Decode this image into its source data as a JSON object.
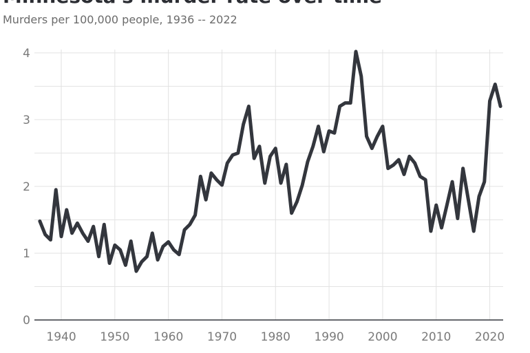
{
  "chart_data": {
    "type": "line",
    "title": "Minnesota's murder rate over time",
    "subtitle": "Murders per 100,000 people, 1936 -- 2022",
    "x": [
      1936,
      1937,
      1938,
      1939,
      1940,
      1941,
      1942,
      1943,
      1944,
      1945,
      1946,
      1947,
      1948,
      1949,
      1950,
      1951,
      1952,
      1953,
      1954,
      1955,
      1956,
      1957,
      1958,
      1959,
      1960,
      1961,
      1962,
      1963,
      1964,
      1965,
      1966,
      1967,
      1968,
      1969,
      1970,
      1971,
      1972,
      1973,
      1974,
      1975,
      1976,
      1977,
      1978,
      1979,
      1980,
      1981,
      1982,
      1983,
      1984,
      1985,
      1986,
      1987,
      1988,
      1989,
      1990,
      1991,
      1992,
      1993,
      1994,
      1995,
      1996,
      1997,
      1998,
      1999,
      2000,
      2001,
      2002,
      2003,
      2004,
      2005,
      2006,
      2007,
      2008,
      2009,
      2010,
      2011,
      2012,
      2013,
      2014,
      2015,
      2016,
      2017,
      2018,
      2019,
      2020,
      2021,
      2022
    ],
    "series": [
      {
        "name": "Murder rate",
        "color": "#33363d",
        "values": [
          1.48,
          1.28,
          1.2,
          1.95,
          1.25,
          1.65,
          1.3,
          1.45,
          1.3,
          1.18,
          1.4,
          0.95,
          1.43,
          0.85,
          1.12,
          1.05,
          0.82,
          1.18,
          0.73,
          0.87,
          0.95,
          1.3,
          0.9,
          1.1,
          1.17,
          1.05,
          0.98,
          1.35,
          1.43,
          1.57,
          2.15,
          1.8,
          2.2,
          2.1,
          2.02,
          2.35,
          2.47,
          2.5,
          2.93,
          3.2,
          2.42,
          2.6,
          2.05,
          2.45,
          2.57,
          2.05,
          2.33,
          1.6,
          1.77,
          2.02,
          2.37,
          2.6,
          2.9,
          2.52,
          2.83,
          2.8,
          3.2,
          3.25,
          3.25,
          4.02,
          3.65,
          2.75,
          2.57,
          2.75,
          2.9,
          2.27,
          2.32,
          2.4,
          2.18,
          2.45,
          2.35,
          2.15,
          2.1,
          1.33,
          1.72,
          1.38,
          1.72,
          2.07,
          1.52,
          2.27,
          1.8,
          1.33,
          1.85,
          2.07,
          3.28,
          3.53,
          3.2
        ]
      }
    ],
    "xlim": [
      1935.5,
      2022.5
    ],
    "xticks": [
      1940,
      1950,
      1960,
      1970,
      1980,
      1990,
      2000,
      2010,
      2020
    ],
    "ylim": [
      0,
      4.05
    ],
    "yticks": [
      0,
      1,
      2,
      3,
      4
    ],
    "minor_yticks": [
      0.5,
      1.5,
      2.5,
      3.5
    ],
    "grid": true
  }
}
